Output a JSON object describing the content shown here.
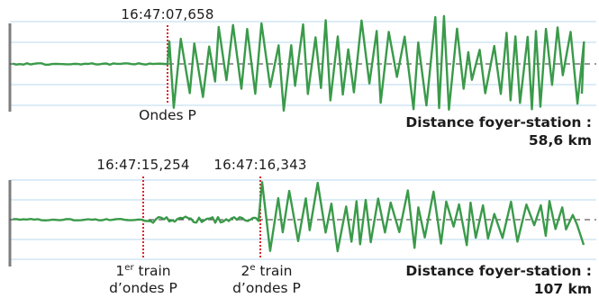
{
  "panels": [
    {
      "id": "top",
      "markers": [
        {
          "time": "16:47:07,658",
          "label": "Ondes P"
        }
      ],
      "distance_label": "Distance foyer-station :",
      "distance_value": "58,6 km",
      "seed": 7
    },
    {
      "id": "bottom",
      "markers": [
        {
          "time": "16:47:15,254",
          "label_main": "1",
          "label_sup": "er",
          "label_rest": " train",
          "label_line2": "d’ondes P"
        },
        {
          "time": "16:47:16,343",
          "label_main": "2",
          "label_sup": "e",
          "label_rest": " train",
          "label_line2": "d’ondes P"
        }
      ],
      "distance_label": "Distance foyer-station :",
      "distance_value": "107 km",
      "seed": 42
    }
  ],
  "colors": {
    "signal": "#3a9a4a",
    "grid": "#b9d8ee",
    "marker": "#d9262c",
    "baseline": "#333333",
    "axis": "#7d7d7d"
  }
}
